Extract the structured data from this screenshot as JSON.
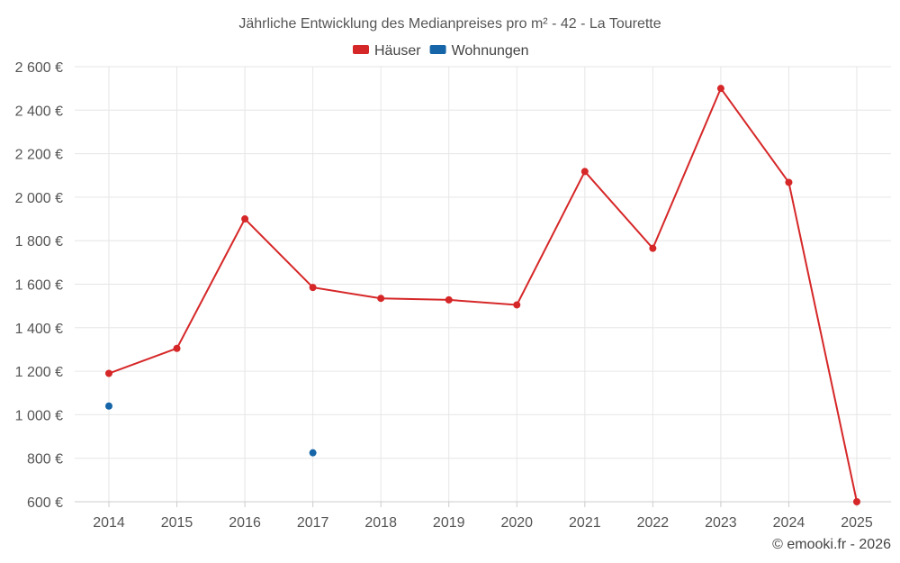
{
  "chart_data": {
    "type": "line",
    "title": "Jährliche Entwicklung des Medianpreises pro m² - 42 - La Tourette",
    "categories": [
      "2014",
      "2015",
      "2016",
      "2017",
      "2018",
      "2019",
      "2020",
      "2021",
      "2022",
      "2023",
      "2024",
      "2025"
    ],
    "series": [
      {
        "name": "Häuser",
        "color": "#d62728",
        "values": [
          1190,
          1305,
          1900,
          1585,
          1535,
          1528,
          1505,
          2118,
          1765,
          2500,
          2068,
          600
        ]
      },
      {
        "name": "Wohnungen",
        "color": "#1565a8",
        "values": [
          1040,
          null,
          null,
          825,
          null,
          null,
          null,
          null,
          null,
          null,
          null,
          null
        ]
      }
    ],
    "ylim": [
      600,
      2600
    ],
    "yticks": [
      600,
      800,
      1000,
      1200,
      1400,
      1600,
      1800,
      2000,
      2200,
      2400,
      2600
    ],
    "ytick_labels": [
      "600 €",
      "800 €",
      "1 000 €",
      "1 200 €",
      "1 400 €",
      "1 600 €",
      "1 800 €",
      "2 000 €",
      "2 200 €",
      "2 400 €",
      "2 600 €"
    ],
    "grid": true,
    "legend_position": "top-center"
  },
  "credit": "© emooki.fr - 2026"
}
